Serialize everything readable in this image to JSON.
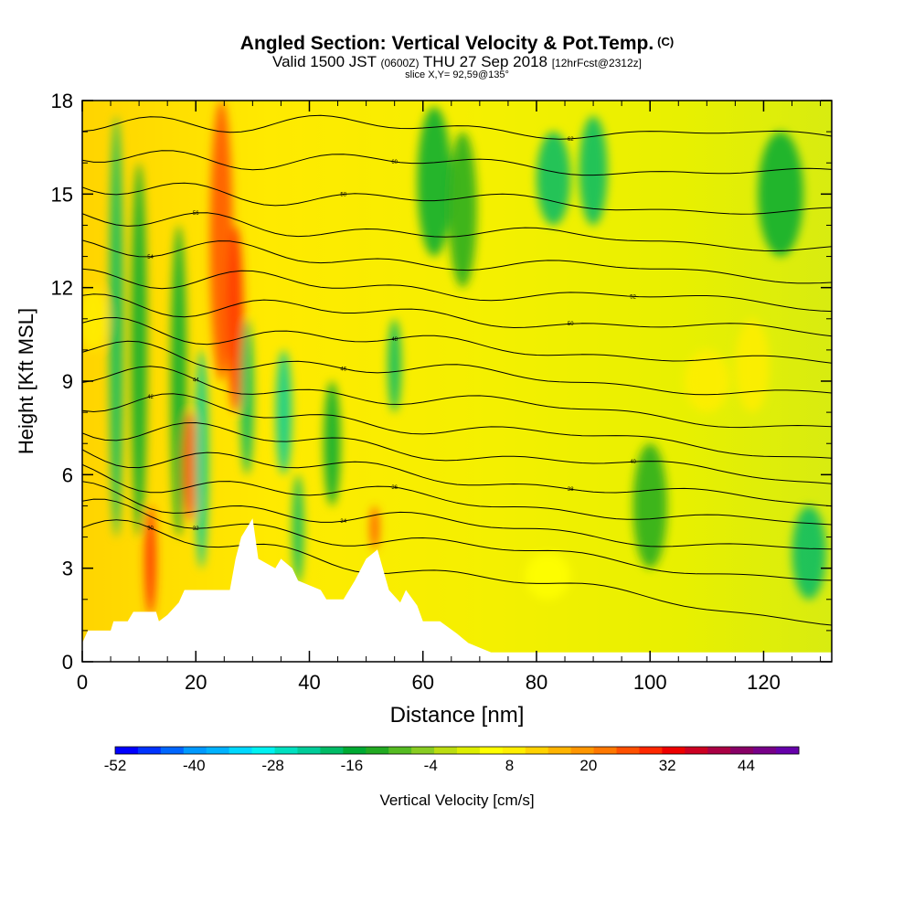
{
  "header": {
    "title": "Angled Section: Vertical Velocity & Pot.Temp.",
    "copyright": "(C)",
    "valid_main": "Valid 1500 JST",
    "valid_utc": "(0600Z)",
    "valid_date": "THU 27 Sep 2018",
    "forecast": "[12hrFcst@2312z]",
    "slice": "slice X,Y= 92,59@135°"
  },
  "chart_data": {
    "type": "heatmap",
    "title": "Angled Section: Vertical Velocity & Pot.Temp.",
    "xlabel": "Distance [nm]",
    "ylabel": "Height [Kft MSL]",
    "xlim": [
      0,
      132
    ],
    "ylim": [
      0,
      18
    ],
    "x_ticks": [
      0,
      20,
      40,
      60,
      80,
      100,
      120
    ],
    "y_ticks": [
      0,
      3,
      6,
      9,
      12,
      15,
      18
    ],
    "colorbar": {
      "label": "Vertical Velocity [cm/s]",
      "range": [
        -52,
        52
      ],
      "step": 4,
      "tick_values": [
        -52,
        -40,
        -28,
        -16,
        -4,
        8,
        20,
        32,
        44
      ],
      "tick_labels": [
        "-52",
        "-40",
        "-28",
        "-16",
        "-4",
        "8",
        "20",
        "32",
        "44"
      ],
      "colors": [
        "#0000ff",
        "#0033ff",
        "#0066ff",
        "#0099ff",
        "#00b2ff",
        "#00d8ff",
        "#00f2f2",
        "#00e0c0",
        "#00cc99",
        "#00bb66",
        "#00aa33",
        "#22aa22",
        "#55bb22",
        "#88cc22",
        "#bbdd11",
        "#ddee00",
        "#ffff00",
        "#ffee00",
        "#ffd200",
        "#ffb400",
        "#ff9600",
        "#ff7800",
        "#ff5000",
        "#ff2800",
        "#ee0000",
        "#cc0022",
        "#aa0044",
        "#880066",
        "#770088",
        "#6600aa"
      ]
    },
    "vertical_velocity_features": [
      {
        "x": 6,
        "y": [
          4,
          17.5
        ],
        "w": 1.2,
        "value": -16
      },
      {
        "x": 10,
        "y": [
          4,
          16
        ],
        "w": 1.4,
        "value": -10
      },
      {
        "x": 12,
        "y": [
          1.5,
          5
        ],
        "w": 1.0,
        "value": 40
      },
      {
        "x": 17,
        "y": [
          4,
          14
        ],
        "w": 1.4,
        "value": -10
      },
      {
        "x": 19,
        "y": [
          4.5,
          8
        ],
        "w": 1.2,
        "value": 36
      },
      {
        "x": 21,
        "y": [
          3,
          10
        ],
        "w": 1.2,
        "value": -18
      },
      {
        "x": 24.5,
        "y": [
          9,
          18
        ],
        "w": 2.0,
        "value": 36
      },
      {
        "x": 27,
        "y": [
          8,
          14
        ],
        "w": 1.4,
        "value": 40
      },
      {
        "x": 29,
        "y": [
          6,
          11
        ],
        "w": 1.2,
        "value": -16
      },
      {
        "x": 35.5,
        "y": [
          6,
          10
        ],
        "w": 1.4,
        "value": -18
      },
      {
        "x": 38,
        "y": [
          2.5,
          6
        ],
        "w": 1.0,
        "value": -14
      },
      {
        "x": 44,
        "y": [
          5,
          9
        ],
        "w": 1.5,
        "value": -10
      },
      {
        "x": 51.5,
        "y": [
          3.6,
          5
        ],
        "w": 0.8,
        "value": 36
      },
      {
        "x": 55,
        "y": [
          8,
          11
        ],
        "w": 1.2,
        "value": -16
      },
      {
        "x": 62,
        "y": [
          13,
          17.8
        ],
        "w": 3.0,
        "value": -10
      },
      {
        "x": 67,
        "y": [
          12,
          17
        ],
        "w": 2.5,
        "value": -8
      },
      {
        "x": 83,
        "y": [
          14,
          17
        ],
        "w": 3.0,
        "value": -14
      },
      {
        "x": 90,
        "y": [
          14,
          17.5
        ],
        "w": 2.5,
        "value": -16
      },
      {
        "x": 100,
        "y": [
          3,
          7
        ],
        "w": 3.0,
        "value": -8
      },
      {
        "x": 110,
        "y": [
          8,
          10
        ],
        "w": 4.0,
        "value": 16
      },
      {
        "x": 118,
        "y": [
          8,
          11
        ],
        "w": 3.0,
        "value": 16
      },
      {
        "x": 123,
        "y": [
          13,
          17
        ],
        "w": 4.0,
        "value": -10
      },
      {
        "x": 128,
        "y": [
          2,
          5
        ],
        "w": 3.0,
        "value": -16
      },
      {
        "x": 82,
        "y": [
          2,
          3.5
        ],
        "w": 4.0,
        "value": 14
      },
      {
        "x": 2,
        "y": [
          10,
          12
        ],
        "w": 2.5,
        "value": 18
      }
    ],
    "terrain": [
      [
        0,
        0.6
      ],
      [
        1,
        1.0
      ],
      [
        5,
        1.0
      ],
      [
        5.5,
        1.3
      ],
      [
        8,
        1.3
      ],
      [
        9,
        1.6
      ],
      [
        13,
        1.6
      ],
      [
        13.5,
        1.3
      ],
      [
        15,
        1.5
      ],
      [
        17,
        1.9
      ],
      [
        18,
        2.3
      ],
      [
        26,
        2.3
      ],
      [
        27,
        3.3
      ],
      [
        28,
        4.0
      ],
      [
        30,
        4.6
      ],
      [
        31,
        3.3
      ],
      [
        34,
        3.0
      ],
      [
        35,
        3.3
      ],
      [
        37,
        3.0
      ],
      [
        38,
        2.6
      ],
      [
        42,
        2.3
      ],
      [
        43,
        2.0
      ],
      [
        46,
        2.0
      ],
      [
        47,
        2.3
      ],
      [
        48,
        2.6
      ],
      [
        50,
        3.3
      ],
      [
        52,
        3.6
      ],
      [
        54,
        2.3
      ],
      [
        56,
        1.9
      ],
      [
        57,
        2.3
      ],
      [
        59,
        1.8
      ],
      [
        60,
        1.3
      ],
      [
        63,
        1.3
      ],
      [
        66,
        0.9
      ],
      [
        68,
        0.6
      ],
      [
        72,
        0.3
      ],
      [
        120,
        0.3
      ],
      [
        132,
        0.3
      ]
    ],
    "theta_contours": [
      {
        "label": "30",
        "y0": 4.3,
        "y1": 1.3
      },
      {
        "label": "32",
        "y0": 4.8,
        "y1": 2.6
      },
      {
        "label": "34",
        "y0": 5.3,
        "y1": 3.5
      },
      {
        "label": "36",
        "y0": 6.0,
        "y1": 4.3
      },
      {
        "label": "38",
        "y0": 6.8,
        "y1": 5.0
      },
      {
        "label": "40",
        "y0": 7.6,
        "y1": 5.8
      },
      {
        "label": "42",
        "y0": 8.4,
        "y1": 6.6
      },
      {
        "label": "44",
        "y0": 9.2,
        "y1": 7.5
      },
      {
        "label": "46",
        "y0": 10.0,
        "y1": 8.5
      },
      {
        "label": "48",
        "y0": 10.8,
        "y1": 9.5
      },
      {
        "label": "50",
        "y0": 11.6,
        "y1": 10.5
      },
      {
        "label": "52",
        "y0": 12.4,
        "y1": 11.4
      },
      {
        "label": "54",
        "y0": 13.3,
        "y1": 12.3
      },
      {
        "label": "56",
        "y0": 14.2,
        "y1": 13.3
      },
      {
        "label": "58",
        "y0": 15.2,
        "y1": 14.4
      },
      {
        "label": "60",
        "y0": 16.3,
        "y1": 15.6
      },
      {
        "label": "62",
        "y0": 17.4,
        "y1": 16.8
      }
    ]
  }
}
